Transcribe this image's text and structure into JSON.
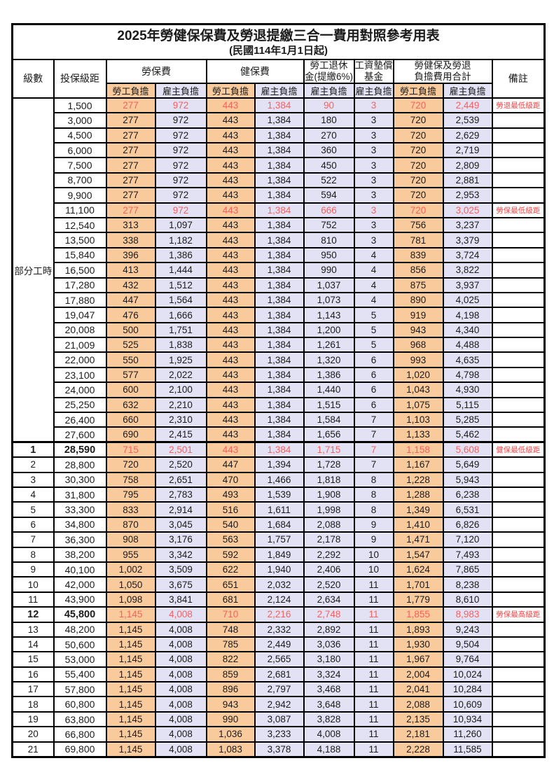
{
  "title": "2025年勞健保保費及勞退提繳三合一費用對照參考用表",
  "subtitle": "(民國114年1月1日起)",
  "colors": {
    "worker_bg": "#F9CA9C",
    "employer_bg": "#E3E2F4",
    "value_red": "#F95F5F",
    "remark_red": "#FF4040",
    "border": "#000000"
  },
  "header": {
    "level": "級數",
    "bracket": "投保級距",
    "labor_insurance": "勞保費",
    "health_insurance": "健保費",
    "pension_line1": "勞工退休",
    "pension_line2": "金(提繳6%)",
    "wage_fund_line1": "工資墊償",
    "wage_fund_line2": "基金",
    "total_line1": "勞健保及勞退",
    "total_line2": "負擔費用合計",
    "remark": "備註",
    "worker": "勞工負擔",
    "employer": "雇主負擔"
  },
  "part_time_label": "部分工時",
  "rows": [
    {
      "level": "",
      "bracket": "1,500",
      "values": [
        "277",
        "972",
        "443",
        "1,384",
        "90",
        "3",
        "720",
        "2,449"
      ],
      "remark": "勞退最低級距",
      "red": true,
      "bold": false
    },
    {
      "level": "",
      "bracket": "3,000",
      "values": [
        "277",
        "972",
        "443",
        "1,384",
        "180",
        "3",
        "720",
        "2,539"
      ],
      "remark": "",
      "red": false,
      "bold": false
    },
    {
      "level": "",
      "bracket": "4,500",
      "values": [
        "277",
        "972",
        "443",
        "1,384",
        "270",
        "3",
        "720",
        "2,629"
      ],
      "remark": "",
      "red": false,
      "bold": false
    },
    {
      "level": "",
      "bracket": "6,000",
      "values": [
        "277",
        "972",
        "443",
        "1,384",
        "360",
        "3",
        "720",
        "2,719"
      ],
      "remark": "",
      "red": false,
      "bold": false
    },
    {
      "level": "",
      "bracket": "7,500",
      "values": [
        "277",
        "972",
        "443",
        "1,384",
        "450",
        "3",
        "720",
        "2,809"
      ],
      "remark": "",
      "red": false,
      "bold": false
    },
    {
      "level": "",
      "bracket": "8,700",
      "values": [
        "277",
        "972",
        "443",
        "1,384",
        "522",
        "3",
        "720",
        "2,881"
      ],
      "remark": "",
      "red": false,
      "bold": false
    },
    {
      "level": "",
      "bracket": "9,900",
      "values": [
        "277",
        "972",
        "443",
        "1,384",
        "594",
        "3",
        "720",
        "2,953"
      ],
      "remark": "",
      "red": false,
      "bold": false
    },
    {
      "level": "",
      "bracket": "11,100",
      "values": [
        "277",
        "972",
        "443",
        "1,384",
        "666",
        "3",
        "720",
        "3,025"
      ],
      "remark": "勞保最低級距",
      "red": true,
      "bold": false
    },
    {
      "level": "",
      "bracket": "12,540",
      "values": [
        "313",
        "1,097",
        "443",
        "1,384",
        "752",
        "3",
        "756",
        "3,237"
      ],
      "remark": "",
      "red": false,
      "bold": false
    },
    {
      "level": "",
      "bracket": "13,500",
      "values": [
        "338",
        "1,182",
        "443",
        "1,384",
        "810",
        "3",
        "781",
        "3,379"
      ],
      "remark": "",
      "red": false,
      "bold": false
    },
    {
      "level": "",
      "bracket": "15,840",
      "values": [
        "396",
        "1,386",
        "443",
        "1,384",
        "950",
        "4",
        "839",
        "3,724"
      ],
      "remark": "",
      "red": false,
      "bold": false
    },
    {
      "level": "",
      "bracket": "16,500",
      "values": [
        "413",
        "1,444",
        "443",
        "1,384",
        "990",
        "4",
        "856",
        "3,822"
      ],
      "remark": "",
      "red": false,
      "bold": false
    },
    {
      "level": "",
      "bracket": "17,280",
      "values": [
        "432",
        "1,512",
        "443",
        "1,384",
        "1,037",
        "4",
        "875",
        "3,937"
      ],
      "remark": "",
      "red": false,
      "bold": false
    },
    {
      "level": "",
      "bracket": "17,880",
      "values": [
        "447",
        "1,564",
        "443",
        "1,384",
        "1,073",
        "4",
        "890",
        "4,025"
      ],
      "remark": "",
      "red": false,
      "bold": false
    },
    {
      "level": "",
      "bracket": "19,047",
      "values": [
        "476",
        "1,666",
        "443",
        "1,384",
        "1,143",
        "5",
        "919",
        "4,198"
      ],
      "remark": "",
      "red": false,
      "bold": false
    },
    {
      "level": "",
      "bracket": "20,008",
      "values": [
        "500",
        "1,751",
        "443",
        "1,384",
        "1,200",
        "5",
        "943",
        "4,340"
      ],
      "remark": "",
      "red": false,
      "bold": false
    },
    {
      "level": "",
      "bracket": "21,009",
      "values": [
        "525",
        "1,838",
        "443",
        "1,384",
        "1,261",
        "5",
        "968",
        "4,488"
      ],
      "remark": "",
      "red": false,
      "bold": false
    },
    {
      "level": "",
      "bracket": "22,000",
      "values": [
        "550",
        "1,925",
        "443",
        "1,384",
        "1,320",
        "6",
        "993",
        "4,635"
      ],
      "remark": "",
      "red": false,
      "bold": false
    },
    {
      "level": "",
      "bracket": "23,100",
      "values": [
        "577",
        "2,022",
        "443",
        "1,384",
        "1,386",
        "6",
        "1,020",
        "4,798"
      ],
      "remark": "",
      "red": false,
      "bold": false
    },
    {
      "level": "",
      "bracket": "24,000",
      "values": [
        "600",
        "2,100",
        "443",
        "1,384",
        "1,440",
        "6",
        "1,043",
        "4,930"
      ],
      "remark": "",
      "red": false,
      "bold": false
    },
    {
      "level": "",
      "bracket": "25,250",
      "values": [
        "632",
        "2,210",
        "443",
        "1,384",
        "1,515",
        "6",
        "1,075",
        "5,115"
      ],
      "remark": "",
      "red": false,
      "bold": false
    },
    {
      "level": "",
      "bracket": "26,400",
      "values": [
        "660",
        "2,310",
        "443",
        "1,384",
        "1,584",
        "7",
        "1,103",
        "5,285"
      ],
      "remark": "",
      "red": false,
      "bold": false
    },
    {
      "level": "",
      "bracket": "27,600",
      "values": [
        "690",
        "2,415",
        "443",
        "1,384",
        "1,656",
        "7",
        "1,133",
        "5,462"
      ],
      "remark": "",
      "red": false,
      "bold": false
    },
    {
      "level": "1",
      "bracket": "28,590",
      "values": [
        "715",
        "2,501",
        "443",
        "1,384",
        "1,715",
        "7",
        "1,158",
        "5,608"
      ],
      "remark": "健保最低級距",
      "red": true,
      "bold": true
    },
    {
      "level": "2",
      "bracket": "28,800",
      "values": [
        "720",
        "2,520",
        "447",
        "1,394",
        "1,728",
        "7",
        "1,167",
        "5,649"
      ],
      "remark": "",
      "red": false,
      "bold": false
    },
    {
      "level": "3",
      "bracket": "30,300",
      "values": [
        "758",
        "2,651",
        "470",
        "1,466",
        "1,818",
        "8",
        "1,228",
        "5,943"
      ],
      "remark": "",
      "red": false,
      "bold": false
    },
    {
      "level": "4",
      "bracket": "31,800",
      "values": [
        "795",
        "2,783",
        "493",
        "1,539",
        "1,908",
        "8",
        "1,288",
        "6,238"
      ],
      "remark": "",
      "red": false,
      "bold": false
    },
    {
      "level": "5",
      "bracket": "33,300",
      "values": [
        "833",
        "2,914",
        "516",
        "1,611",
        "1,998",
        "8",
        "1,349",
        "6,531"
      ],
      "remark": "",
      "red": false,
      "bold": false
    },
    {
      "level": "6",
      "bracket": "34,800",
      "values": [
        "870",
        "3,045",
        "540",
        "1,684",
        "2,088",
        "9",
        "1,410",
        "6,826"
      ],
      "remark": "",
      "red": false,
      "bold": false
    },
    {
      "level": "7",
      "bracket": "36,300",
      "values": [
        "908",
        "3,176",
        "563",
        "1,757",
        "2,178",
        "9",
        "1,471",
        "7,120"
      ],
      "remark": "",
      "red": false,
      "bold": false
    },
    {
      "level": "8",
      "bracket": "38,200",
      "values": [
        "955",
        "3,342",
        "592",
        "1,849",
        "2,292",
        "10",
        "1,547",
        "7,493"
      ],
      "remark": "",
      "red": false,
      "bold": false
    },
    {
      "level": "9",
      "bracket": "40,100",
      "values": [
        "1,002",
        "3,509",
        "622",
        "1,940",
        "2,406",
        "10",
        "1,624",
        "7,865"
      ],
      "remark": "",
      "red": false,
      "bold": false
    },
    {
      "level": "10",
      "bracket": "42,000",
      "values": [
        "1,050",
        "3,675",
        "651",
        "2,032",
        "2,520",
        "11",
        "1,701",
        "8,238"
      ],
      "remark": "",
      "red": false,
      "bold": false
    },
    {
      "level": "11",
      "bracket": "43,900",
      "values": [
        "1,098",
        "3,841",
        "681",
        "2,124",
        "2,634",
        "11",
        "1,779",
        "8,610"
      ],
      "remark": "",
      "red": false,
      "bold": false
    },
    {
      "level": "12",
      "bracket": "45,800",
      "values": [
        "1,145",
        "4,008",
        "710",
        "2,216",
        "2,748",
        "11",
        "1,855",
        "8,983"
      ],
      "remark": "勞保最高級距",
      "red": true,
      "bold": true
    },
    {
      "level": "13",
      "bracket": "48,200",
      "values": [
        "1,145",
        "4,008",
        "748",
        "2,332",
        "2,892",
        "11",
        "1,893",
        "9,243"
      ],
      "remark": "",
      "red": false,
      "bold": false
    },
    {
      "level": "14",
      "bracket": "50,600",
      "values": [
        "1,145",
        "4,008",
        "785",
        "2,449",
        "3,036",
        "11",
        "1,930",
        "9,504"
      ],
      "remark": "",
      "red": false,
      "bold": false
    },
    {
      "level": "15",
      "bracket": "53,000",
      "values": [
        "1,145",
        "4,008",
        "822",
        "2,565",
        "3,180",
        "11",
        "1,967",
        "9,764"
      ],
      "remark": "",
      "red": false,
      "bold": false
    },
    {
      "level": "16",
      "bracket": "55,400",
      "values": [
        "1,145",
        "4,008",
        "859",
        "2,681",
        "3,324",
        "11",
        "2,004",
        "10,024"
      ],
      "remark": "",
      "red": false,
      "bold": false
    },
    {
      "level": "17",
      "bracket": "57,800",
      "values": [
        "1,145",
        "4,008",
        "896",
        "2,797",
        "3,468",
        "11",
        "2,041",
        "10,284"
      ],
      "remark": "",
      "red": false,
      "bold": false
    },
    {
      "level": "18",
      "bracket": "60,800",
      "values": [
        "1,145",
        "4,008",
        "943",
        "2,942",
        "3,648",
        "11",
        "2,088",
        "10,609"
      ],
      "remark": "",
      "red": false,
      "bold": false
    },
    {
      "level": "19",
      "bracket": "63,800",
      "values": [
        "1,145",
        "4,008",
        "990",
        "3,087",
        "3,828",
        "11",
        "2,135",
        "10,934"
      ],
      "remark": "",
      "red": false,
      "bold": false
    },
    {
      "level": "20",
      "bracket": "66,800",
      "values": [
        "1,145",
        "4,008",
        "1,036",
        "3,233",
        "4,008",
        "11",
        "2,181",
        "11,260"
      ],
      "remark": "",
      "red": false,
      "bold": false
    },
    {
      "level": "21",
      "bracket": "69,800",
      "values": [
        "1,145",
        "4,008",
        "1,083",
        "3,378",
        "4,188",
        "11",
        "2,228",
        "11,585"
      ],
      "remark": "",
      "red": false,
      "bold": false
    }
  ]
}
